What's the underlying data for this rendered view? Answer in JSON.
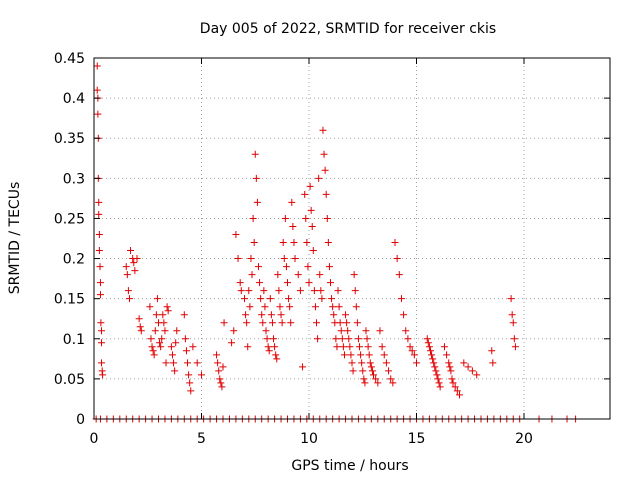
{
  "chart_data": {
    "type": "scatter",
    "title": "Day 005 of 2022, SRMTID for receiver ckis",
    "xlabel": "GPS time / hours",
    "ylabel": "SRMTID / TECUs",
    "xlim": [
      0,
      24
    ],
    "ylim": [
      0,
      0.45
    ],
    "xticks": [
      "0",
      "5",
      "10",
      "15",
      "20"
    ],
    "xtick_values": [
      0,
      5,
      10,
      15,
      20
    ],
    "yticks": [
      "0",
      "0.05",
      "0.1",
      "0.15",
      "0.2",
      "0.25",
      "0.3",
      "0.35",
      "0.4",
      "0.45"
    ],
    "ytick_values": [
      0,
      0.05,
      0.1,
      0.15,
      0.2,
      0.25,
      0.3,
      0.35,
      0.4,
      0.45
    ],
    "grid": true,
    "marker": "+",
    "color": "#e00000",
    "series": [
      {
        "x": [
          0.15,
          0.15,
          0.18,
          0.18,
          0.2,
          0.2,
          0.22,
          0.22,
          0.25,
          0.25,
          0.28,
          0.3,
          0.3,
          0.32,
          0.35,
          0.35,
          0.35,
          0.38,
          0.4,
          1.5,
          1.55,
          1.6,
          1.65,
          1.7,
          1.8,
          1.85,
          1.9,
          2.0,
          2.1,
          2.15,
          2.2,
          2.6,
          2.65,
          2.7,
          2.75,
          2.8,
          2.85,
          2.9,
          2.95,
          3.0,
          3.05,
          3.1,
          3.15,
          3.2,
          3.25,
          3.3,
          3.35,
          3.4,
          3.45,
          3.6,
          3.65,
          3.7,
          3.75,
          3.8,
          3.85,
          4.2,
          4.25,
          4.3,
          4.35,
          4.4,
          4.45,
          4.5,
          4.6,
          4.8,
          5.0,
          5.7,
          5.75,
          5.8,
          5.85,
          5.9,
          5.95,
          6.0,
          6.05,
          6.4,
          6.5,
          6.6,
          6.7,
          6.8,
          6.85,
          7.0,
          7.05,
          7.1,
          7.15,
          7.2,
          7.25,
          7.3,
          7.35,
          7.4,
          7.45,
          7.5,
          7.55,
          7.6,
          7.65,
          7.7,
          7.75,
          7.8,
          7.85,
          7.9,
          7.95,
          8.0,
          8.05,
          8.1,
          8.15,
          8.2,
          8.25,
          8.3,
          8.35,
          8.4,
          8.45,
          8.5,
          8.55,
          8.6,
          8.65,
          8.7,
          8.75,
          8.8,
          8.85,
          8.9,
          8.95,
          9.0,
          9.05,
          9.1,
          9.15,
          9.2,
          9.25,
          9.3,
          9.35,
          9.5,
          9.6,
          9.7,
          9.8,
          9.85,
          9.9,
          9.95,
          10.0,
          10.05,
          10.1,
          10.15,
          10.2,
          10.25,
          10.3,
          10.35,
          10.4,
          10.45,
          10.5,
          10.55,
          10.6,
          10.65,
          10.7,
          10.75,
          10.8,
          10.85,
          10.9,
          10.95,
          11.0,
          11.05,
          11.1,
          11.15,
          11.2,
          11.25,
          11.3,
          11.35,
          11.4,
          11.45,
          11.5,
          11.55,
          11.6,
          11.65,
          11.7,
          11.75,
          11.8,
          11.85,
          11.9,
          11.95,
          12.0,
          12.05,
          12.1,
          12.15,
          12.2,
          12.25,
          12.3,
          12.35,
          12.4,
          12.45,
          12.5,
          12.55,
          12.6,
          12.65,
          12.7,
          12.75,
          12.8,
          12.85,
          12.9,
          12.95,
          13.0,
          13.1,
          13.2,
          13.3,
          13.4,
          13.5,
          13.6,
          13.7,
          13.8,
          13.9,
          14.0,
          14.1,
          14.2,
          14.3,
          14.4,
          14.5,
          14.6,
          14.7,
          14.8,
          14.9,
          15.0,
          15.5,
          15.55,
          15.6,
          15.65,
          15.7,
          15.75,
          15.8,
          15.85,
          15.9,
          15.95,
          16.0,
          16.05,
          16.1,
          16.3,
          16.4,
          16.5,
          16.55,
          16.6,
          16.65,
          16.7,
          16.8,
          16.9,
          17.0,
          17.2,
          17.4,
          17.6,
          17.8,
          18.5,
          18.55,
          19.4,
          19.45,
          19.5,
          19.55,
          19.6
        ],
        "y": [
          0.44,
          0.41,
          0.4,
          0.38,
          0.35,
          0.3,
          0.27,
          0.255,
          0.23,
          0.21,
          0.19,
          0.17,
          0.155,
          0.12,
          0.11,
          0.095,
          0.07,
          0.06,
          0.055,
          0.19,
          0.18,
          0.16,
          0.15,
          0.21,
          0.2,
          0.195,
          0.185,
          0.2,
          0.125,
          0.115,
          0.11,
          0.14,
          0.1,
          0.09,
          0.085,
          0.08,
          0.11,
          0.13,
          0.15,
          0.12,
          0.095,
          0.09,
          0.1,
          0.13,
          0.12,
          0.11,
          0.07,
          0.14,
          0.135,
          0.09,
          0.08,
          0.07,
          0.06,
          0.095,
          0.11,
          0.13,
          0.1,
          0.085,
          0.07,
          0.055,
          0.045,
          0.035,
          0.09,
          0.07,
          0.055,
          0.08,
          0.07,
          0.06,
          0.05,
          0.045,
          0.04,
          0.065,
          0.12,
          0.095,
          0.11,
          0.23,
          0.2,
          0.17,
          0.16,
          0.15,
          0.13,
          0.12,
          0.09,
          0.16,
          0.14,
          0.2,
          0.18,
          0.25,
          0.22,
          0.33,
          0.3,
          0.27,
          0.19,
          0.17,
          0.15,
          0.13,
          0.12,
          0.16,
          0.14,
          0.11,
          0.1,
          0.09,
          0.085,
          0.15,
          0.13,
          0.12,
          0.1,
          0.09,
          0.08,
          0.075,
          0.18,
          0.16,
          0.14,
          0.13,
          0.12,
          0.22,
          0.2,
          0.25,
          0.19,
          0.17,
          0.15,
          0.14,
          0.12,
          0.27,
          0.24,
          0.22,
          0.2,
          0.18,
          0.16,
          0.065,
          0.28,
          0.25,
          0.22,
          0.19,
          0.17,
          0.29,
          0.26,
          0.24,
          0.21,
          0.16,
          0.14,
          0.12,
          0.1,
          0.3,
          0.18,
          0.16,
          0.15,
          0.36,
          0.33,
          0.31,
          0.28,
          0.25,
          0.22,
          0.19,
          0.17,
          0.15,
          0.14,
          0.13,
          0.12,
          0.1,
          0.09,
          0.16,
          0.14,
          0.12,
          0.11,
          0.1,
          0.09,
          0.08,
          0.13,
          0.12,
          0.11,
          0.1,
          0.09,
          0.08,
          0.07,
          0.06,
          0.18,
          0.16,
          0.14,
          0.12,
          0.1,
          0.09,
          0.08,
          0.07,
          0.06,
          0.05,
          0.045,
          0.11,
          0.1,
          0.09,
          0.08,
          0.07,
          0.065,
          0.06,
          0.055,
          0.05,
          0.045,
          0.11,
          0.09,
          0.08,
          0.07,
          0.06,
          0.05,
          0.045,
          0.22,
          0.2,
          0.18,
          0.15,
          0.13,
          0.11,
          0.1,
          0.09,
          0.085,
          0.08,
          0.07,
          0.1,
          0.095,
          0.09,
          0.085,
          0.08,
          0.075,
          0.07,
          0.065,
          0.06,
          0.055,
          0.05,
          0.045,
          0.04,
          0.09,
          0.08,
          0.07,
          0.065,
          0.06,
          0.05,
          0.045,
          0.04,
          0.035,
          0.03,
          0.07,
          0.065,
          0.06,
          0.055,
          0.085,
          0.07,
          0.15,
          0.13,
          0.12,
          0.1,
          0.09
        ]
      },
      {
        "x": [
          0.1,
          0.3,
          0.6,
          0.9,
          1.2,
          1.5,
          1.8,
          2.1,
          2.4,
          2.7,
          3.0,
          3.3,
          3.6,
          3.9,
          4.2,
          4.5,
          4.8,
          5.1,
          5.4,
          5.7,
          6.0,
          6.3,
          6.6,
          6.9,
          7.2,
          7.5,
          7.8,
          8.1,
          8.4,
          8.7,
          9.0,
          9.3,
          9.6,
          9.9,
          10.2,
          10.5,
          10.8,
          11.1,
          11.4,
          11.7,
          12.0,
          12.3,
          12.6,
          12.9,
          13.2,
          13.5,
          13.8,
          14.1,
          14.4,
          14.7,
          15.0,
          15.3,
          15.6,
          15.9,
          16.2,
          16.5,
          16.8,
          17.1,
          17.4,
          17.7,
          18.0,
          18.3,
          18.6,
          18.9,
          19.2,
          19.5,
          19.8,
          20.7,
          21.3,
          22.0,
          22.4
        ],
        "y": [
          0,
          0,
          0,
          0,
          0,
          0,
          0,
          0,
          0,
          0,
          0,
          0,
          0,
          0,
          0,
          0,
          0,
          0,
          0,
          0,
          0,
          0,
          0,
          0,
          0,
          0,
          0,
          0,
          0,
          0,
          0,
          0,
          0,
          0,
          0,
          0,
          0,
          0,
          0,
          0,
          0,
          0,
          0,
          0,
          0,
          0,
          0,
          0,
          0,
          0,
          0,
          0,
          0,
          0,
          0,
          0,
          0,
          0,
          0,
          0,
          0,
          0,
          0,
          0,
          0,
          0,
          0,
          0,
          0,
          0,
          0
        ]
      }
    ]
  }
}
